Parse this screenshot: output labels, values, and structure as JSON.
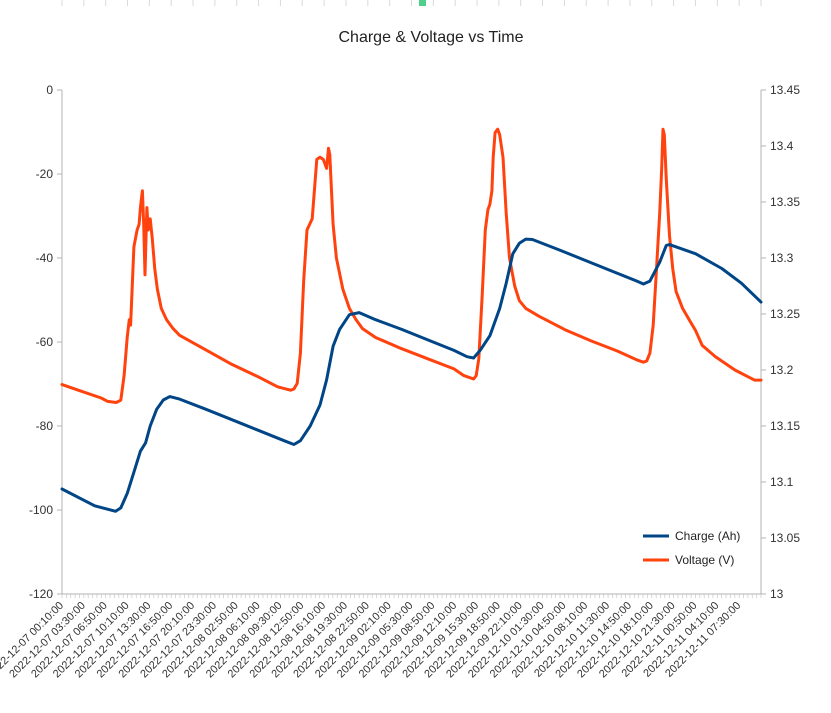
{
  "chart_data": {
    "type": "line",
    "title": "Charge & Voltage vs Time",
    "xlabel": "",
    "ylabel": "",
    "y2label": "",
    "grid": "vertical, light",
    "legend_position": "bottom-right, inside plot",
    "ylim": [
      -120,
      0
    ],
    "y_ticks": [
      0,
      -20,
      -40,
      -60,
      -80,
      -100,
      -120
    ],
    "y2lim": [
      13,
      13.45
    ],
    "y2_ticks": [
      "13.45",
      "13.4",
      "13.35",
      "13.3",
      "13.25",
      "13.2",
      "13.15",
      "13.1",
      "13.05",
      "13"
    ],
    "x_tick_labels": [
      "2022-12-07 00:10:00",
      "2022-12-07 03:30:00",
      "2022-12-07 06:50:00",
      "2022-12-07 10:10:00",
      "2022-12-07 13:30:00",
      "2022-12-07 16:50:00",
      "2022-12-07 20:10:00",
      "2022-12-07 23:30:00",
      "2022-12-08 02:50:00",
      "2022-12-08 06:10:00",
      "2022-12-08 09:30:00",
      "2022-12-08 12:50:00",
      "2022-12-08 16:10:00",
      "2022-12-08 19:30:00",
      "2022-12-08 22:50:00",
      "2022-12-09 02:10:00",
      "2022-12-09 05:30:00",
      "2022-12-09 08:50:00",
      "2022-12-09 12:10:00",
      "2022-12-09 15:30:00",
      "2022-12-09 18:50:00",
      "2022-12-09 22:10:00",
      "2022-12-10 01:30:00",
      "2022-12-10 04:50:00",
      "2022-12-10 08:10:00",
      "2022-12-10 11:30:00",
      "2022-12-10 14:50:00",
      "2022-12-10 18:10:00",
      "2022-12-10 21:30:00",
      "2022-12-11 00:50:00",
      "2022-12-11 04:10:00",
      "2022-12-11 07:30:00"
    ],
    "x_range_hours": [
      0,
      107
    ],
    "series": [
      {
        "name": "Charge (Ah)",
        "axis": "left",
        "color": "#004586",
        "points": [
          [
            0,
            -95
          ],
          [
            5,
            -99
          ],
          [
            8.2,
            -100.3
          ],
          [
            9,
            -99.5
          ],
          [
            10,
            -96
          ],
          [
            11,
            -91
          ],
          [
            12,
            -86
          ],
          [
            12.8,
            -84
          ],
          [
            13.5,
            -80
          ],
          [
            14.5,
            -76
          ],
          [
            15.5,
            -73.8
          ],
          [
            16.5,
            -73
          ],
          [
            18,
            -73.6
          ],
          [
            22,
            -76
          ],
          [
            26,
            -78.5
          ],
          [
            30,
            -81
          ],
          [
            34,
            -83.5
          ],
          [
            35.5,
            -84.4
          ],
          [
            36.5,
            -83.5
          ],
          [
            38,
            -80
          ],
          [
            39.5,
            -75
          ],
          [
            40.5,
            -69
          ],
          [
            41.5,
            -61
          ],
          [
            42.5,
            -57
          ],
          [
            44,
            -53.5
          ],
          [
            45.5,
            -53
          ],
          [
            48,
            -54.7
          ],
          [
            52,
            -57
          ],
          [
            56,
            -59.5
          ],
          [
            60,
            -62
          ],
          [
            62,
            -63.5
          ],
          [
            63,
            -63.8
          ],
          [
            64,
            -62
          ],
          [
            65.5,
            -58.5
          ],
          [
            67,
            -52
          ],
          [
            68,
            -46
          ],
          [
            69,
            -39
          ],
          [
            70,
            -36.5
          ],
          [
            71,
            -35.5
          ],
          [
            72,
            -35.6
          ],
          [
            76,
            -38
          ],
          [
            80,
            -40.5
          ],
          [
            84,
            -43
          ],
          [
            88,
            -45.5
          ],
          [
            89,
            -46.2
          ],
          [
            90,
            -45.5
          ],
          [
            91.5,
            -41
          ],
          [
            92.5,
            -37
          ],
          [
            93,
            -36.8
          ],
          [
            97,
            -39
          ],
          [
            101,
            -42.5
          ],
          [
            104,
            -46
          ],
          [
            107,
            -50.5
          ]
        ]
      },
      {
        "name": "Voltage (V)",
        "axis": "right",
        "color": "#ff420e",
        "points": [
          [
            0,
            13.187
          ],
          [
            3,
            13.181
          ],
          [
            6,
            13.175
          ],
          [
            7,
            13.172
          ],
          [
            8.3,
            13.171
          ],
          [
            9,
            13.173
          ],
          [
            9.5,
            13.195
          ],
          [
            10,
            13.23
          ],
          [
            10.3,
            13.245
          ],
          [
            10.5,
            13.24
          ],
          [
            11,
            13.31
          ],
          [
            11.5,
            13.325
          ],
          [
            11.8,
            13.33
          ],
          [
            12,
            13.345
          ],
          [
            12.3,
            13.36
          ],
          [
            12.5,
            13.33
          ],
          [
            12.7,
            13.285
          ],
          [
            12.85,
            13.315
          ],
          [
            13,
            13.345
          ],
          [
            13.2,
            13.325
          ],
          [
            13.5,
            13.335
          ],
          [
            13.8,
            13.318
          ],
          [
            14.2,
            13.29
          ],
          [
            14.6,
            13.272
          ],
          [
            15.2,
            13.255
          ],
          [
            16,
            13.245
          ],
          [
            17,
            13.237
          ],
          [
            18,
            13.231
          ],
          [
            22,
            13.218
          ],
          [
            26,
            13.205
          ],
          [
            30,
            13.194
          ],
          [
            33,
            13.185
          ],
          [
            35,
            13.182
          ],
          [
            35.5,
            13.183
          ],
          [
            36,
            13.188
          ],
          [
            36.5,
            13.215
          ],
          [
            37,
            13.28
          ],
          [
            37.5,
            13.325
          ],
          [
            38.3,
            13.335
          ],
          [
            38.7,
            13.365
          ],
          [
            39,
            13.388
          ],
          [
            39.5,
            13.39
          ],
          [
            40,
            13.388
          ],
          [
            40.5,
            13.38
          ],
          [
            40.8,
            13.398
          ],
          [
            41,
            13.392
          ],
          [
            41.5,
            13.33
          ],
          [
            42,
            13.3
          ],
          [
            43,
            13.272
          ],
          [
            44,
            13.255
          ],
          [
            45,
            13.245
          ],
          [
            46,
            13.237
          ],
          [
            48,
            13.229
          ],
          [
            52,
            13.219
          ],
          [
            56,
            13.21
          ],
          [
            60,
            13.201
          ],
          [
            61.5,
            13.195
          ],
          [
            62.5,
            13.193
          ],
          [
            63,
            13.192
          ],
          [
            63.4,
            13.195
          ],
          [
            63.8,
            13.21
          ],
          [
            64.3,
            13.265
          ],
          [
            64.8,
            13.325
          ],
          [
            65.2,
            13.343
          ],
          [
            65.5,
            13.348
          ],
          [
            65.8,
            13.36
          ],
          [
            66,
            13.39
          ],
          [
            66.3,
            13.412
          ],
          [
            66.7,
            13.415
          ],
          [
            67,
            13.41
          ],
          [
            67.5,
            13.39
          ],
          [
            68,
            13.34
          ],
          [
            68.5,
            13.3
          ],
          [
            69.3,
            13.275
          ],
          [
            70,
            13.262
          ],
          [
            71,
            13.255
          ],
          [
            73,
            13.248
          ],
          [
            77,
            13.236
          ],
          [
            81,
            13.226
          ],
          [
            85,
            13.217
          ],
          [
            88,
            13.209
          ],
          [
            89,
            13.207
          ],
          [
            89.5,
            13.208
          ],
          [
            90,
            13.215
          ],
          [
            90.5,
            13.24
          ],
          [
            91,
            13.29
          ],
          [
            91.5,
            13.34
          ],
          [
            91.8,
            13.38
          ],
          [
            92,
            13.415
          ],
          [
            92.2,
            13.41
          ],
          [
            92.5,
            13.37
          ],
          [
            93,
            13.32
          ],
          [
            93.5,
            13.29
          ],
          [
            94,
            13.27
          ],
          [
            95,
            13.255
          ],
          [
            96,
            13.245
          ],
          [
            97,
            13.235
          ],
          [
            98,
            13.222
          ],
          [
            100,
            13.212
          ],
          [
            103,
            13.2
          ],
          [
            105,
            13.194
          ],
          [
            106,
            13.191
          ],
          [
            107,
            13.191
          ]
        ]
      }
    ]
  }
}
